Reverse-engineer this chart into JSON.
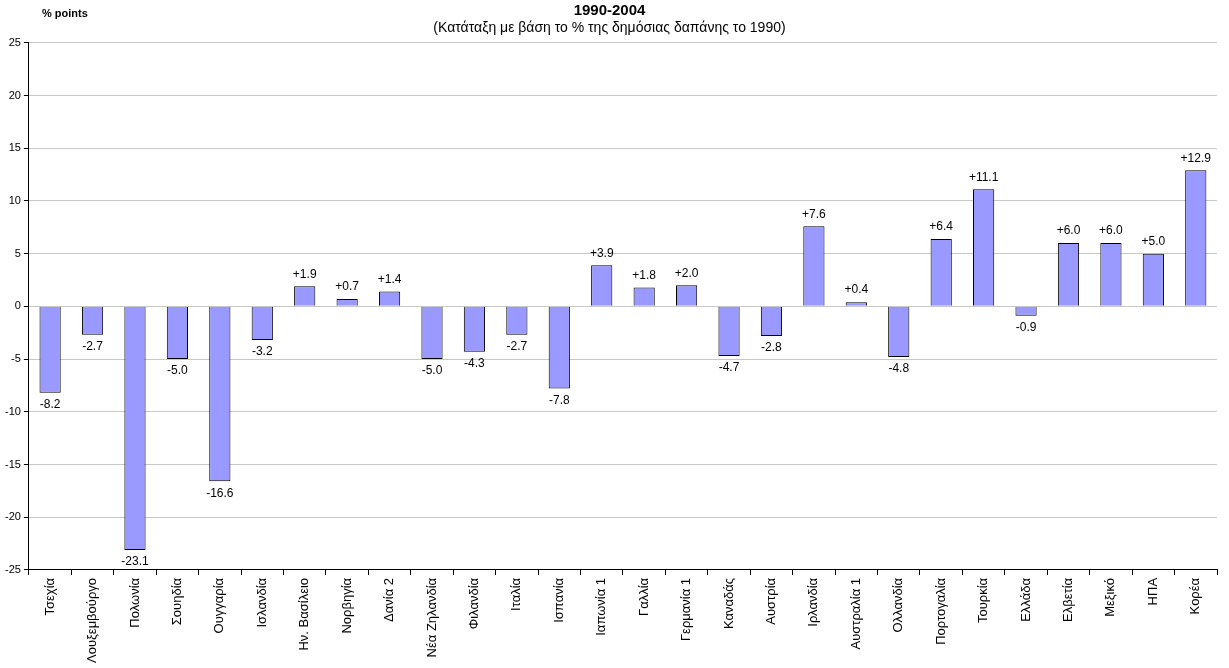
{
  "chart_data": {
    "type": "bar",
    "title": "1990-2004",
    "subtitle": "(Κατάταξη με βάση το % της δημόσιας δαπάνης το 1990)",
    "ylabel": "% points",
    "categories": [
      "Τσεχία",
      "Λουξεμβούργο",
      "Πολωνία",
      "Σουηδία",
      "Ουγγαρία",
      "Ισλανδία",
      "Ην. Βασίλειο",
      "Νορβηγία",
      "Δανία 2",
      "Νέα Ζηλανδία",
      "Φιλανδία",
      "Ιταλία",
      "Ισπανία",
      "Ιαπωνία 1",
      "Γαλλία",
      "Γερμανία 1",
      "Καναδάς",
      "Αυστρία",
      "Ιρλανδία",
      "Αυστραλία 1",
      "Ολλανδία",
      "Πορτογαλία",
      "Τουρκία",
      "Ελλάδα",
      "Ελβετία",
      "Μεξικό",
      "ΗΠΑ",
      "Κορέα"
    ],
    "values": [
      -8.2,
      -2.7,
      -23.1,
      -5.0,
      -16.6,
      -3.2,
      1.9,
      0.7,
      1.4,
      -5.0,
      -4.3,
      -2.7,
      -7.8,
      3.9,
      1.8,
      2.0,
      -4.7,
      -2.8,
      7.6,
      0.4,
      -4.8,
      6.4,
      11.1,
      -0.9,
      6.0,
      6.0,
      5.0,
      12.9
    ],
    "value_labels": [
      "-8.2",
      "-2.7",
      "-23.1",
      "-5.0",
      "-16.6",
      "-3.2",
      "+1.9",
      "+0.7",
      "+1.4",
      "-5.0",
      "-4.3",
      "-2.7",
      "-7.8",
      "+3.9",
      "+1.8",
      "+2.0",
      "-4.7",
      "-2.8",
      "+7.6",
      "+0.4",
      "-4.8",
      "+6.4",
      "+11.1",
      "-0.9",
      "+6.0",
      "+6.0",
      "+5.0",
      "+12.9"
    ],
    "color": "#9999ff",
    "ylim": [
      -25,
      25
    ],
    "yticks": [
      -25,
      -20,
      -15,
      -10,
      -5,
      0,
      5,
      10,
      15,
      20,
      25
    ],
    "grid": "y",
    "legend": false
  }
}
